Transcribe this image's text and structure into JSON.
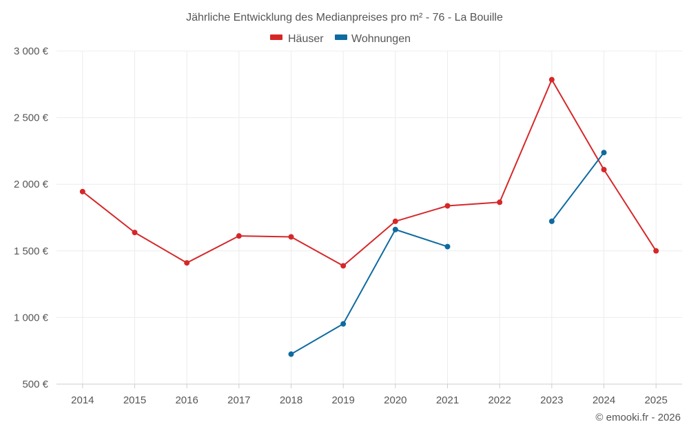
{
  "chart_data": {
    "type": "line",
    "title": "Jährliche Entwicklung des Medianpreises pro m² - 76 - La Bouille",
    "xlabel": "",
    "ylabel": "",
    "categories": [
      "2014",
      "2015",
      "2016",
      "2017",
      "2018",
      "2019",
      "2020",
      "2021",
      "2022",
      "2023",
      "2024",
      "2025"
    ],
    "ylim": [
      500,
      3000
    ],
    "yticks": [
      500,
      1000,
      1500,
      2000,
      2500,
      3000
    ],
    "ytick_labels": [
      "500 €",
      "1 000 €",
      "1 500 €",
      "2 000 €",
      "2 500 €",
      "3 000 €"
    ],
    "grid": true,
    "legend_position": "top-center",
    "series": [
      {
        "name": "Häuser",
        "color": "#d62728",
        "values": [
          1945,
          1638,
          1410,
          1612,
          1605,
          1388,
          1722,
          1838,
          1865,
          2785,
          2110,
          1500
        ]
      },
      {
        "name": "Wohnungen",
        "color": "#0e6aa0",
        "values": [
          null,
          null,
          null,
          null,
          725,
          952,
          1660,
          1532,
          null,
          1722,
          2238,
          null
        ]
      }
    ]
  },
  "credit": "© emooki.fr - 2026"
}
